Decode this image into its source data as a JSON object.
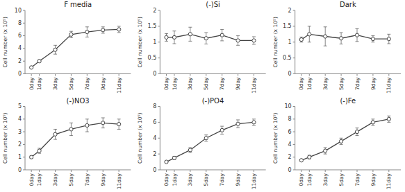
{
  "chart_data": [
    {
      "type": "line",
      "title": "F media",
      "ylabel": "Cell number (x 10⁵)",
      "x": [
        0,
        1,
        3,
        5,
        7,
        9,
        11
      ],
      "xlim": [
        -0.8,
        12.5
      ],
      "xticks": [
        {
          "value": 0,
          "label": "0day"
        },
        {
          "value": 1,
          "label": "1day"
        },
        {
          "value": 3,
          "label": "3day"
        },
        {
          "value": 5,
          "label": "5day"
        },
        {
          "value": 7,
          "label": "7day"
        },
        {
          "value": 9,
          "label": "9day"
        },
        {
          "value": 11,
          "label": "11day"
        }
      ],
      "ylim": [
        0,
        10
      ],
      "yticks": [
        0,
        2,
        4,
        6,
        8,
        10
      ],
      "series": [
        {
          "values": [
            1.0,
            2.0,
            3.8,
            6.2,
            6.6,
            6.9,
            7.0
          ],
          "yerr": [
            0.1,
            0.2,
            0.7,
            0.5,
            0.8,
            0.5,
            0.5
          ],
          "color": "#444444",
          "marker": "o"
        }
      ]
    },
    {
      "type": "line",
      "title": "(-)Si",
      "ylabel": "Cell number (x 10⁵)",
      "x": [
        0,
        1,
        3,
        5,
        7,
        9,
        11
      ],
      "xlim": [
        -0.8,
        12.5
      ],
      "xticks": [
        {
          "value": 0,
          "label": "0day"
        },
        {
          "value": 1,
          "label": "1day"
        },
        {
          "value": 3,
          "label": "3day"
        },
        {
          "value": 5,
          "label": "5day"
        },
        {
          "value": 7,
          "label": "7day"
        },
        {
          "value": 9,
          "label": "9day"
        },
        {
          "value": 11,
          "label": "11day"
        }
      ],
      "ylim": [
        0,
        2
      ],
      "yticks": [
        0,
        0.5,
        1,
        1.5,
        2
      ],
      "series": [
        {
          "values": [
            1.15,
            1.15,
            1.25,
            1.12,
            1.22,
            1.05,
            1.05
          ],
          "yerr": [
            0.12,
            0.2,
            0.22,
            0.18,
            0.18,
            0.15,
            0.12
          ],
          "color": "#444444",
          "marker": "o"
        }
      ]
    },
    {
      "type": "line",
      "title": "Dark",
      "ylabel": "Cell number (x 10⁵)",
      "x": [
        0,
        1,
        3,
        5,
        7,
        9,
        11
      ],
      "xlim": [
        -0.8,
        12.5
      ],
      "xticks": [
        {
          "value": 0,
          "label": "0day"
        },
        {
          "value": 1,
          "label": "1day"
        },
        {
          "value": 3,
          "label": "3day"
        },
        {
          "value": 5,
          "label": "5day"
        },
        {
          "value": 7,
          "label": "7day"
        },
        {
          "value": 9,
          "label": "9day"
        },
        {
          "value": 11,
          "label": "11day"
        }
      ],
      "ylim": [
        0,
        2
      ],
      "yticks": [
        0,
        0.5,
        1,
        1.5,
        2
      ],
      "series": [
        {
          "values": [
            1.08,
            1.25,
            1.18,
            1.12,
            1.22,
            1.1,
            1.1
          ],
          "yerr": [
            0.08,
            0.25,
            0.3,
            0.18,
            0.2,
            0.1,
            0.15
          ],
          "color": "#444444",
          "marker": "o"
        }
      ]
    },
    {
      "type": "line",
      "title": "(-)NO3",
      "ylabel": "Cell number (x 10⁵)",
      "x": [
        0,
        1,
        3,
        5,
        7,
        9,
        11
      ],
      "xlim": [
        -0.8,
        12.5
      ],
      "xticks": [
        {
          "value": 0,
          "label": "0day"
        },
        {
          "value": 1,
          "label": "1day"
        },
        {
          "value": 3,
          "label": "3day"
        },
        {
          "value": 5,
          "label": "5day"
        },
        {
          "value": 7,
          "label": "7day"
        },
        {
          "value": 9,
          "label": "9day"
        },
        {
          "value": 11,
          "label": "11day"
        }
      ],
      "ylim": [
        0,
        5
      ],
      "yticks": [
        0,
        1,
        2,
        3,
        4,
        5
      ],
      "series": [
        {
          "values": [
            1.0,
            1.5,
            2.8,
            3.2,
            3.5,
            3.7,
            3.6
          ],
          "yerr": [
            0.1,
            0.2,
            0.4,
            0.5,
            0.5,
            0.4,
            0.4
          ],
          "color": "#444444",
          "marker": "o"
        }
      ]
    },
    {
      "type": "line",
      "title": "(-)PO4",
      "ylabel": "Cell number (x 10⁵)",
      "x": [
        0,
        1,
        3,
        5,
        7,
        9,
        11
      ],
      "xlim": [
        -0.8,
        12.5
      ],
      "xticks": [
        {
          "value": 0,
          "label": "0day"
        },
        {
          "value": 1,
          "label": "1day"
        },
        {
          "value": 3,
          "label": "3day"
        },
        {
          "value": 5,
          "label": "5day"
        },
        {
          "value": 7,
          "label": "7day"
        },
        {
          "value": 9,
          "label": "9day"
        },
        {
          "value": 11,
          "label": "11day"
        }
      ],
      "ylim": [
        0,
        8
      ],
      "yticks": [
        0,
        2,
        4,
        6,
        8
      ],
      "series": [
        {
          "values": [
            1.0,
            1.5,
            2.5,
            4.0,
            5.0,
            5.8,
            6.0
          ],
          "yerr": [
            0.1,
            0.2,
            0.3,
            0.4,
            0.5,
            0.5,
            0.4
          ],
          "color": "#444444",
          "marker": "o"
        }
      ]
    },
    {
      "type": "line",
      "title": "(-)Fe",
      "ylabel": "Cell number (x 10⁵)",
      "x": [
        0,
        1,
        3,
        5,
        7,
        9,
        11
      ],
      "xlim": [
        -0.8,
        12.5
      ],
      "xticks": [
        {
          "value": 0,
          "label": "0day"
        },
        {
          "value": 1,
          "label": "1day"
        },
        {
          "value": 3,
          "label": "3day"
        },
        {
          "value": 5,
          "label": "5day"
        },
        {
          "value": 7,
          "label": "7day"
        },
        {
          "value": 9,
          "label": "9day"
        },
        {
          "value": 11,
          "label": "11day"
        }
      ],
      "ylim": [
        0,
        10
      ],
      "yticks": [
        0,
        2,
        4,
        6,
        8,
        10
      ],
      "series": [
        {
          "values": [
            1.5,
            2.0,
            3.0,
            4.5,
            6.0,
            7.5,
            8.0
          ],
          "yerr": [
            0.1,
            0.3,
            0.5,
            0.5,
            0.6,
            0.5,
            0.5
          ],
          "color": "#444444",
          "marker": "o"
        }
      ]
    }
  ]
}
